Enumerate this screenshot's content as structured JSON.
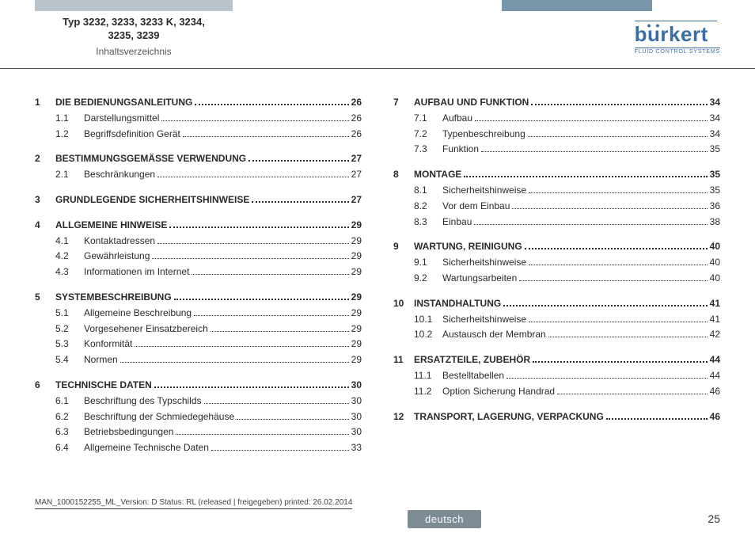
{
  "header": {
    "type_line1": "Typ 3232, 3233, 3233 K, 3234,",
    "type_line2": "3235, 3239",
    "subtitle": "Inhaltsverzeichnis",
    "brand": "burkert",
    "brand_tagline": "FLUID CONTROL SYSTEMS"
  },
  "footer": {
    "meta": "MAN_1000152255_ML_Version: D Status: RL (released | freigegeben)  printed: 26.02.2014",
    "language": "deutsch",
    "page": "25"
  },
  "toc": {
    "left": [
      {
        "num": "1",
        "title": "DIE BEDIENUNGSANLEITUNG",
        "page": "26",
        "subs": [
          {
            "num": "1.1",
            "title": "Darstellungsmittel",
            "page": "26"
          },
          {
            "num": "1.2",
            "title": "Begriffsdefinition Gerät",
            "page": "26"
          }
        ]
      },
      {
        "num": "2",
        "title": "BESTIMMUNGSGEMÄSSE VERWENDUNG",
        "page": "27",
        "subs": [
          {
            "num": "2.1",
            "title": "Beschränkungen",
            "page": "27"
          }
        ]
      },
      {
        "num": "3",
        "title": "GRUNDLEGENDE SICHERHEITSHINWEISE",
        "page": "27",
        "subs": []
      },
      {
        "num": "4",
        "title": "ALLGEMEINE HINWEISE",
        "page": "29",
        "subs": [
          {
            "num": "4.1",
            "title": "Kontaktadressen",
            "page": "29"
          },
          {
            "num": "4.2",
            "title": "Gewährleistung",
            "page": "29"
          },
          {
            "num": "4.3",
            "title": "Informationen im Internet",
            "page": "29"
          }
        ]
      },
      {
        "num": "5",
        "title": "SYSTEMBESCHREIBUNG",
        "page": "29",
        "subs": [
          {
            "num": "5.1",
            "title": "Allgemeine Beschreibung",
            "page": "29"
          },
          {
            "num": "5.2",
            "title": "Vorgesehener Einsatzbereich",
            "page": "29"
          },
          {
            "num": "5.3",
            "title": "Konformität",
            "page": "29"
          },
          {
            "num": "5.4",
            "title": "Normen",
            "page": "29"
          }
        ]
      },
      {
        "num": "6",
        "title": "TECHNISCHE DATEN",
        "page": "30",
        "subs": [
          {
            "num": "6.1",
            "title": "Beschriftung des Typschilds",
            "page": "30"
          },
          {
            "num": "6.2",
            "title": "Beschriftung der Schmiedegehäuse",
            "page": "30"
          },
          {
            "num": "6.3",
            "title": "Betriebsbedingungen",
            "page": "30"
          },
          {
            "num": "6.4",
            "title": "Allgemeine Technische Daten",
            "page": "33"
          }
        ]
      }
    ],
    "right": [
      {
        "num": "7",
        "title": "AUFBAU UND FUNKTION",
        "page": "34",
        "subs": [
          {
            "num": "7.1",
            "title": "Aufbau",
            "page": "34"
          },
          {
            "num": "7.2",
            "title": "Typenbeschreibung",
            "page": "34"
          },
          {
            "num": "7.3",
            "title": "Funktion",
            "page": "35"
          }
        ]
      },
      {
        "num": "8",
        "title": "MONTAGE",
        "page": "35",
        "subs": [
          {
            "num": "8.1",
            "title": "Sicherheitshinweise",
            "page": "35"
          },
          {
            "num": "8.2",
            "title": "Vor dem Einbau",
            "page": "36"
          },
          {
            "num": "8.3",
            "title": "Einbau",
            "page": "38"
          }
        ]
      },
      {
        "num": "9",
        "title": "WARTUNG, REINIGUNG",
        "page": "40",
        "subs": [
          {
            "num": "9.1",
            "title": "Sicherheitshinweise",
            "page": "40"
          },
          {
            "num": "9.2",
            "title": "Wartungsarbeiten",
            "page": "40"
          }
        ]
      },
      {
        "num": "10",
        "title": "INSTANDHALTUNG",
        "page": "41",
        "subs": [
          {
            "num": "10.1",
            "title": "Sicherheitshinweise",
            "page": "41"
          },
          {
            "num": "10.2",
            "title": "Austausch der Membran",
            "page": "42"
          }
        ]
      },
      {
        "num": "11",
        "title": "ERSATZTEILE, ZUBEHÖR",
        "page": "44",
        "subs": [
          {
            "num": "11.1",
            "title": "Bestelltabellen",
            "page": "44"
          },
          {
            "num": "11.2",
            "title": "Option Sicherung Handrad",
            "page": "46"
          }
        ]
      },
      {
        "num": "12",
        "title": "TRANSPORT, LAGERUNG, VERPACKUNG",
        "page": "46",
        "subs": []
      }
    ]
  }
}
